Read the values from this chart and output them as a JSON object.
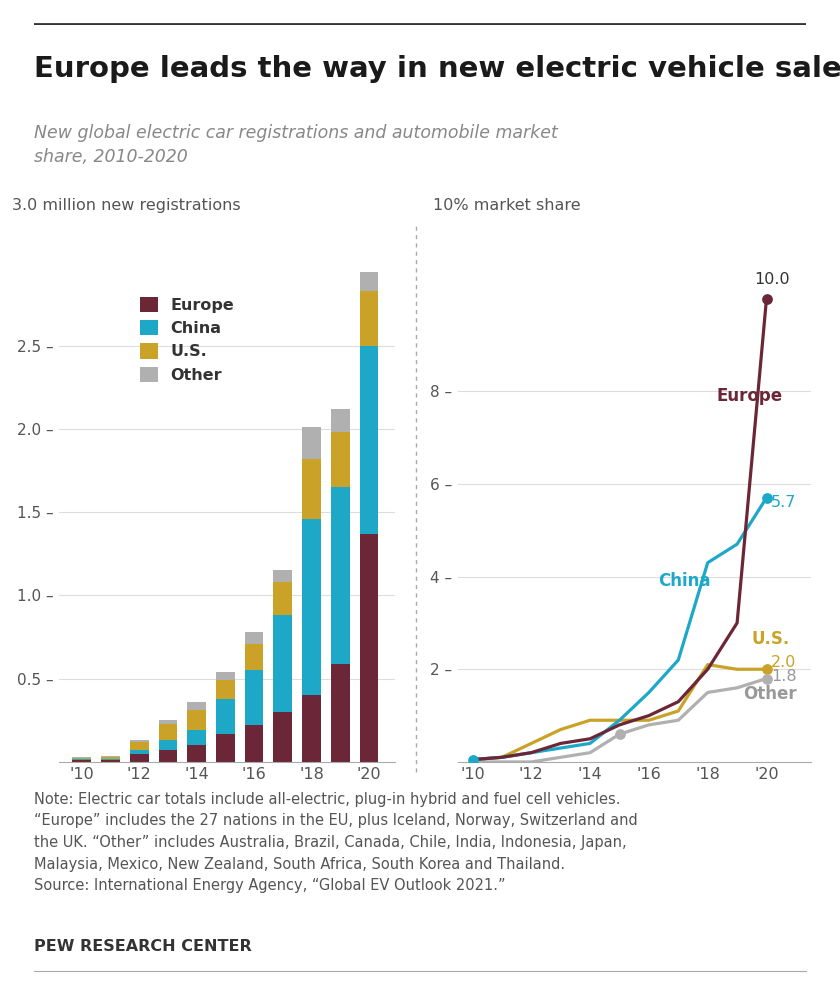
{
  "title": "Europe leads the way in new electric vehicle sales",
  "subtitle": "New global electric car registrations and automobile market\nshare, 2010-2020",
  "bar_years": [
    2010,
    2011,
    2012,
    2013,
    2014,
    2015,
    2016,
    2017,
    2018,
    2019,
    2020
  ],
  "bar_europe": [
    0.01,
    0.01,
    0.05,
    0.07,
    0.1,
    0.17,
    0.22,
    0.3,
    0.4,
    0.59,
    1.37
  ],
  "bar_china": [
    0.008,
    0.01,
    0.02,
    0.06,
    0.09,
    0.21,
    0.33,
    0.58,
    1.06,
    1.06,
    1.13
  ],
  "bar_us": [
    0.008,
    0.01,
    0.05,
    0.1,
    0.12,
    0.11,
    0.16,
    0.2,
    0.36,
    0.33,
    0.33
  ],
  "bar_other": [
    0.003,
    0.003,
    0.01,
    0.02,
    0.05,
    0.05,
    0.07,
    0.07,
    0.19,
    0.14,
    0.11
  ],
  "line_years": [
    2010,
    2011,
    2012,
    2013,
    2014,
    2015,
    2016,
    2017,
    2018,
    2019,
    2020
  ],
  "line_europe": [
    0.05,
    0.1,
    0.2,
    0.4,
    0.5,
    0.8,
    1.0,
    1.3,
    2.0,
    3.0,
    10.0
  ],
  "line_china": [
    0.05,
    0.1,
    0.2,
    0.3,
    0.4,
    0.9,
    1.5,
    2.2,
    4.3,
    4.7,
    5.7
  ],
  "line_us": [
    0.05,
    0.1,
    0.4,
    0.7,
    0.9,
    0.9,
    0.9,
    1.1,
    2.1,
    2.0,
    2.0
  ],
  "line_other": [
    0.0,
    0.0,
    0.0,
    0.1,
    0.2,
    0.6,
    0.8,
    0.9,
    1.5,
    1.6,
    1.8
  ],
  "color_europe": "#6b2737",
  "color_china": "#1da8c8",
  "color_us": "#c9a227",
  "color_other": "#b0b0b0",
  "note_line1": "Note: Electric car totals include all-electric, plug-in hybrid and fuel cell vehicles.",
  "note_line2": "“Europe” includes the 27 nations in the EU, plus Iceland, Norway, Switzerland and",
  "note_line3": "the UK. “Other” includes Australia, Brazil, Canada, Chile, India, Indonesia, Japan,",
  "note_line4": "Malaysia, Mexico, New Zealand, South Africa, South Korea and Thailand.",
  "note_line5": "Source: International Energy Agency, “Global EV Outlook 2021.”",
  "source_label": "PEW RESEARCH CENTER",
  "bar_ylabel": "3.0 million new registrations",
  "line_ylabel": "10% market share"
}
